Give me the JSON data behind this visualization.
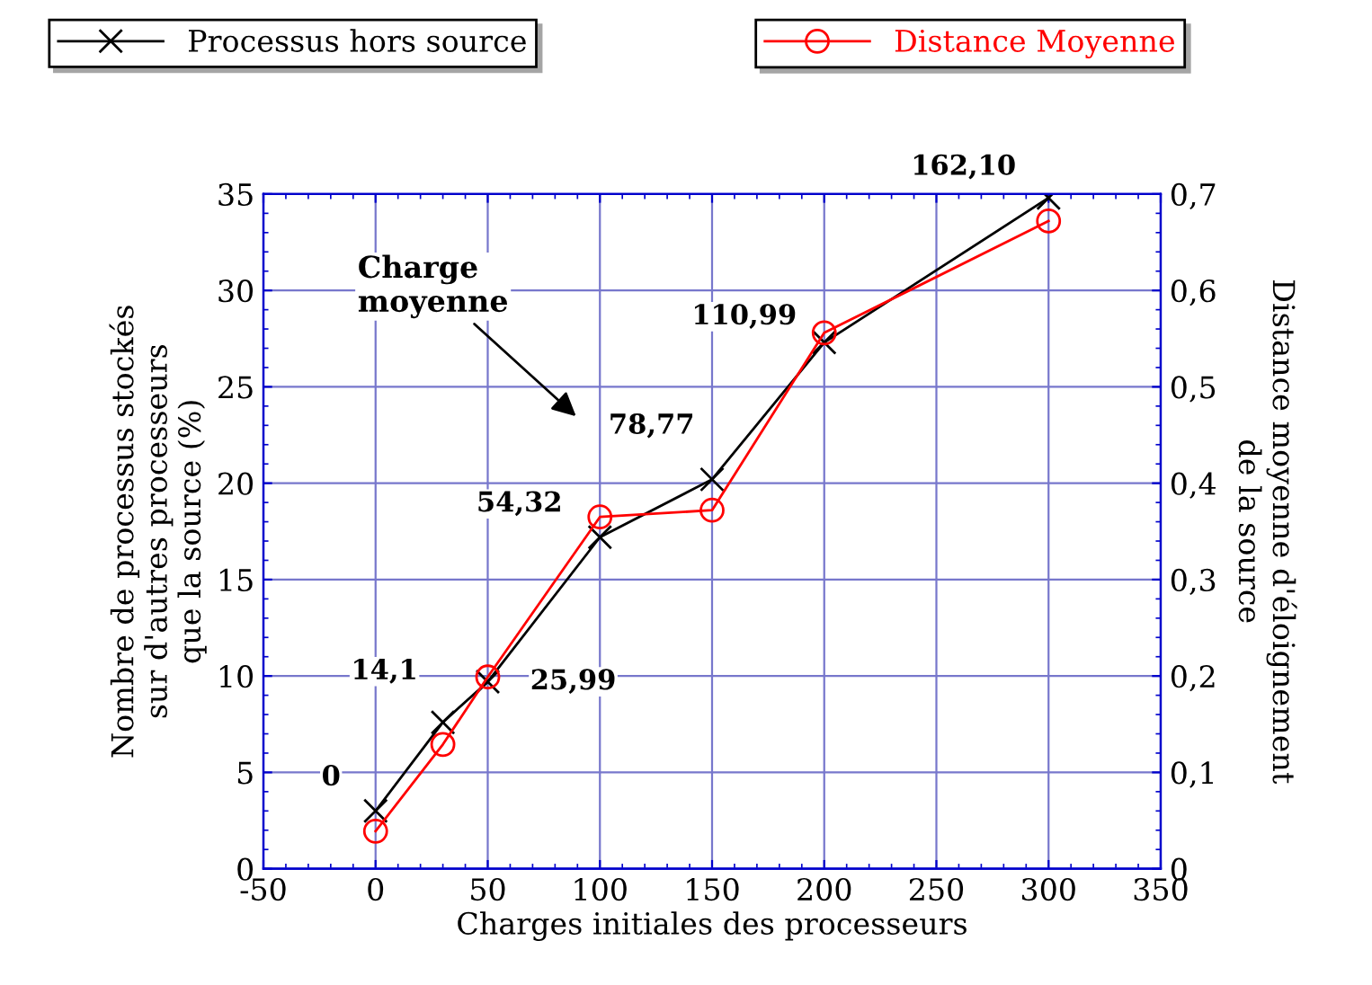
{
  "chart_data": {
    "type": "line",
    "xlabel": "Charges initiales des processeurs",
    "ylabel": "Nombre de processus stockés\nsur d'autres processeurs\nque la source (%)",
    "y2label": "Distance moyenne d'éloignement\nde la source",
    "x": [
      0,
      30,
      50,
      100,
      150,
      200,
      300
    ],
    "series": [
      {
        "name": "Processus hors source",
        "color": "#000000",
        "marker": "cross",
        "values": [
          3.0,
          7.6,
          9.7,
          17.2,
          20.2,
          27.3,
          34.8
        ]
      },
      {
        "name": "Distance Moyenne",
        "color": "#ff0000",
        "marker": "circle",
        "axis": "y2",
        "values": [
          0.039,
          0.129,
          0.199,
          0.365,
          0.372,
          0.556,
          0.672
        ]
      }
    ],
    "xlim": [
      -50,
      350
    ],
    "xticks": [
      -50,
      0,
      50,
      100,
      150,
      200,
      250,
      300,
      350
    ],
    "ylim": [
      0,
      35
    ],
    "yticks": [
      0,
      5,
      10,
      15,
      20,
      25,
      30,
      35
    ],
    "y2lim": [
      0,
      0.7
    ],
    "y2ticks": [
      {
        "value": 0,
        "label": "0"
      },
      {
        "value": 0.1,
        "label": "0,1"
      },
      {
        "value": 0.2,
        "label": "0,2"
      },
      {
        "value": 0.3,
        "label": "0,3"
      },
      {
        "value": 0.4,
        "label": "0,4"
      },
      {
        "value": 0.5,
        "label": "0,5"
      },
      {
        "value": 0.6,
        "label": "0,6"
      },
      {
        "value": 0.7,
        "label": "0,7"
      }
    ],
    "annotations": [
      {
        "text": "0",
        "x": 0,
        "y": 3.0
      },
      {
        "text": "14,1",
        "x": 30,
        "y": 7.6
      },
      {
        "text": "25,99",
        "x": 50,
        "y": 9.7
      },
      {
        "text": "54,32",
        "x": 100,
        "y": 17.2
      },
      {
        "text": "78,77",
        "x": 150,
        "y": 20.2
      },
      {
        "text": "110,99",
        "x": 200,
        "y": 27.3
      },
      {
        "text": "162,10",
        "x": 300,
        "y": 34.8
      },
      "Charge\nmoyenne"
    ],
    "grid": true,
    "legend": "top",
    "line_style": "solid"
  }
}
